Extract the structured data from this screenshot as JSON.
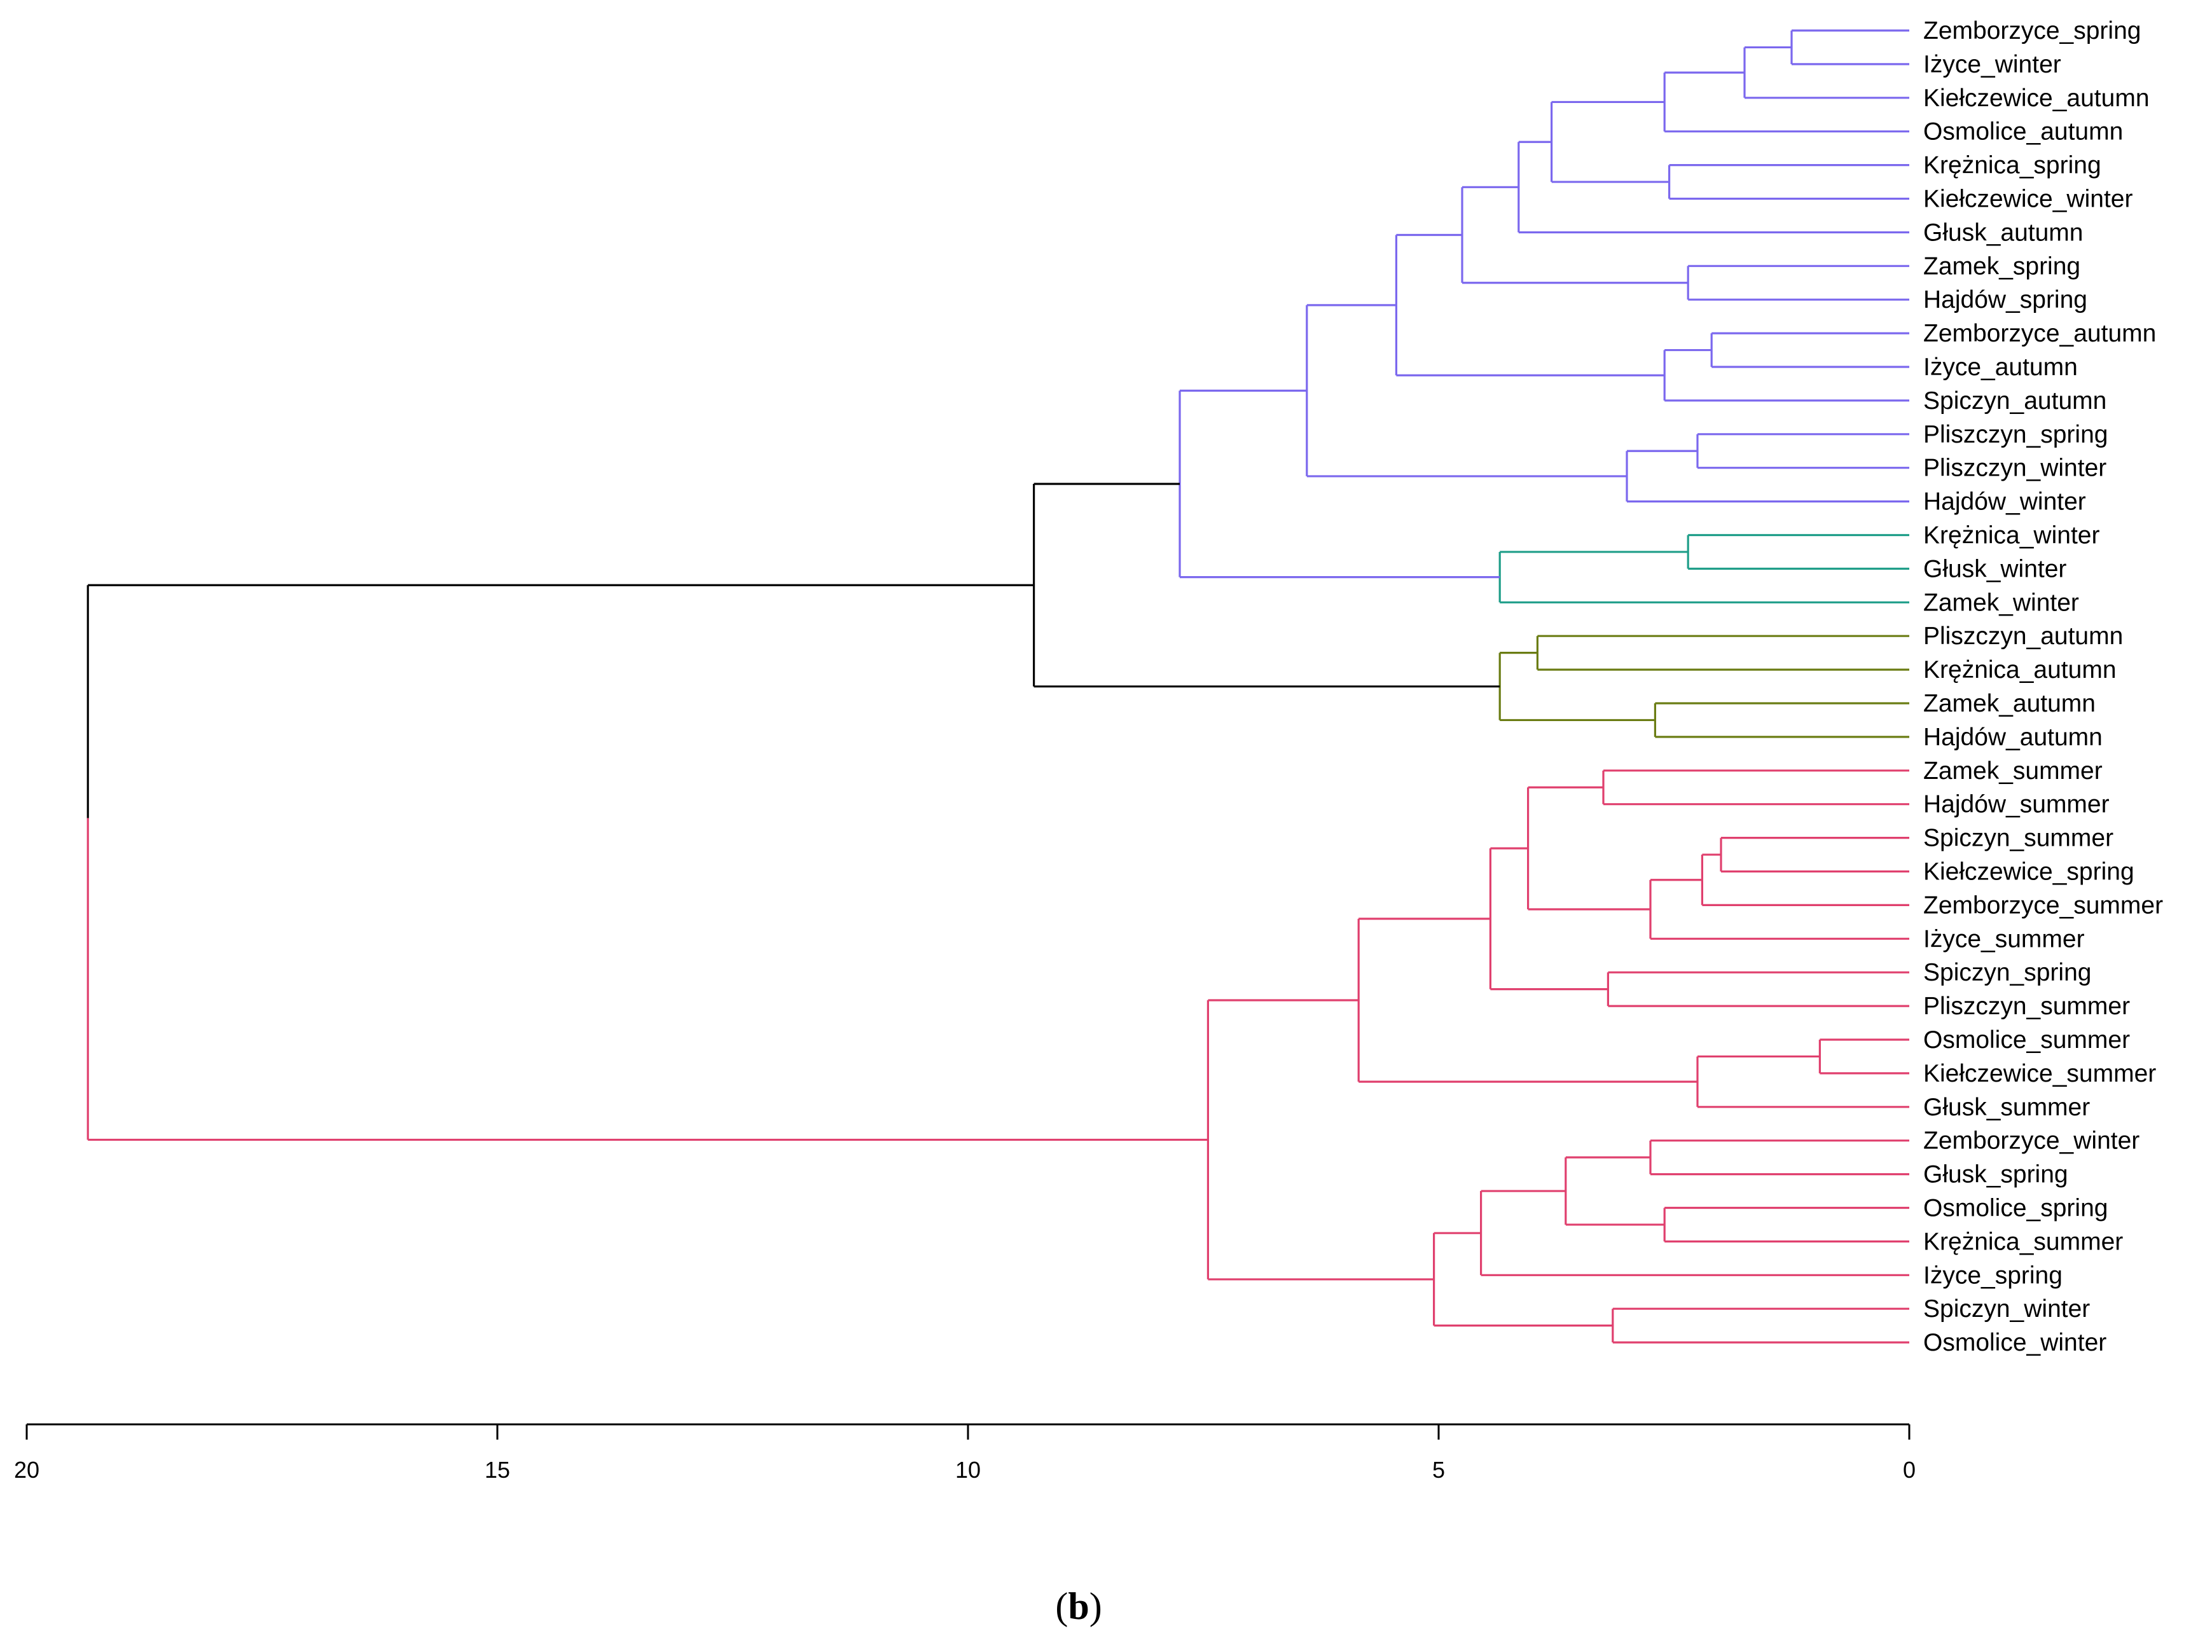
{
  "chart_data": {
    "type": "dendrogram",
    "orientation": "horizontal",
    "xlim": [
      20,
      0
    ],
    "ticks": [
      20,
      15,
      10,
      5,
      0
    ],
    "tick_labels": [
      "20",
      "15",
      "10",
      "5",
      "0"
    ],
    "panel_label": {
      "open": "(",
      "letter": "b",
      "close": ")"
    },
    "colors": {
      "purple": "#7b68ee",
      "teal": "#1f9e89",
      "olive": "#6b7d14",
      "pink": "#e0406e",
      "root": "#000000"
    },
    "leaves": [
      "Zemborzyce_spring",
      "Iżyce_winter",
      "Kiełczewice_autumn",
      "Osmolice_autumn",
      "Krężnica_spring",
      "Kiełczewice_winter",
      "Głusk_autumn",
      "Zamek_spring",
      "Hajdów_spring",
      "Zemborzyce_autumn",
      "Iżyce_autumn",
      "Spiczyn_autumn",
      "Pliszczyn_spring",
      "Pliszczyn_winter",
      "Hajdów_winter",
      "Krężnica_winter",
      "Głusk_winter",
      "Zamek_winter",
      "Pliszczyn_autumn",
      "Krężnica_autumn",
      "Zamek_autumn",
      "Hajdów_autumn",
      "Zamek_summer",
      "Hajdów_summer",
      "Spiczyn_summer",
      "Kiełczewice_spring",
      "Zemborzyce_summer",
      "Iżyce_summer",
      "Spiczyn_spring",
      "Pliszczyn_summer",
      "Osmolice_summer",
      "Kiełczewice_summer",
      "Głusk_summer",
      "Zemborzyce_winter",
      "Głusk_spring",
      "Osmolice_spring",
      "Krężnica_summer",
      "Iżyce_spring",
      "Spiczyn_winter",
      "Osmolice_winter"
    ],
    "merges": [
      {
        "id": "P1",
        "left": "L0",
        "right": "L1",
        "height": 1.25,
        "color": "purple"
      },
      {
        "id": "P2",
        "left": "P1",
        "right": "L2",
        "height": 1.75,
        "color": "purple"
      },
      {
        "id": "P3",
        "left": "P2",
        "right": "L3",
        "height": 2.6,
        "color": "purple"
      },
      {
        "id": "P4",
        "left": "L4",
        "right": "L5",
        "height": 2.55,
        "color": "purple"
      },
      {
        "id": "P5",
        "left": "P3",
        "right": "P4",
        "height": 3.8,
        "color": "purple"
      },
      {
        "id": "P6",
        "left": "P5",
        "right": "L6",
        "height": 4.15,
        "color": "purple"
      },
      {
        "id": "P7",
        "left": "L7",
        "right": "L8",
        "height": 2.35,
        "color": "purple"
      },
      {
        "id": "P8",
        "left": "P6",
        "right": "P7",
        "height": 4.75,
        "color": "purple"
      },
      {
        "id": "P9",
        "left": "L9",
        "right": "L10",
        "height": 2.1,
        "color": "purple"
      },
      {
        "id": "P10",
        "left": "P9",
        "right": "L11",
        "height": 2.6,
        "color": "purple"
      },
      {
        "id": "P11",
        "left": "P8",
        "right": "P10",
        "height": 5.45,
        "color": "purple"
      },
      {
        "id": "P12",
        "left": "L12",
        "right": "L13",
        "height": 2.25,
        "color": "purple"
      },
      {
        "id": "P13",
        "left": "P12",
        "right": "L14",
        "height": 3.0,
        "color": "purple"
      },
      {
        "id": "P14",
        "left": "P11",
        "right": "P13",
        "height": 6.4,
        "color": "purple"
      },
      {
        "id": "T1",
        "left": "L15",
        "right": "L16",
        "height": 2.35,
        "color": "teal"
      },
      {
        "id": "T2",
        "left": "T1",
        "right": "L17",
        "height": 4.35,
        "color": "teal"
      },
      {
        "id": "G1",
        "left": "P14",
        "right": "T2",
        "height": 7.75,
        "color": "purple"
      },
      {
        "id": "O1",
        "left": "L18",
        "right": "L19",
        "height": 3.95,
        "color": "olive"
      },
      {
        "id": "O2",
        "left": "L20",
        "right": "L21",
        "height": 2.7,
        "color": "olive"
      },
      {
        "id": "O3",
        "left": "O1",
        "right": "O2",
        "height": 4.35,
        "color": "olive"
      },
      {
        "id": "G2",
        "left": "G1",
        "right": "O3",
        "height": 9.3,
        "color": "root"
      },
      {
        "id": "R1",
        "left": "L22",
        "right": "L23",
        "height": 3.25,
        "color": "pink"
      },
      {
        "id": "R2",
        "left": "L24",
        "right": "L25",
        "height": 2.0,
        "color": "pink"
      },
      {
        "id": "R3",
        "left": "R2",
        "right": "L26",
        "height": 2.2,
        "color": "pink"
      },
      {
        "id": "R4",
        "left": "R3",
        "right": "L27",
        "height": 2.75,
        "color": "pink"
      },
      {
        "id": "R5",
        "left": "R1",
        "right": "R4",
        "height": 4.05,
        "color": "pink"
      },
      {
        "id": "R6",
        "left": "L28",
        "right": "L29",
        "height": 3.2,
        "color": "pink"
      },
      {
        "id": "R7",
        "left": "R5",
        "right": "R6",
        "height": 4.45,
        "color": "pink"
      },
      {
        "id": "R8",
        "left": "L30",
        "right": "L31",
        "height": 0.95,
        "color": "pink"
      },
      {
        "id": "R9",
        "left": "R8",
        "right": "L32",
        "height": 2.25,
        "color": "pink"
      },
      {
        "id": "R10",
        "left": "R7",
        "right": "R9",
        "height": 5.85,
        "color": "pink"
      },
      {
        "id": "R11",
        "left": "L33",
        "right": "L34",
        "height": 2.75,
        "color": "pink"
      },
      {
        "id": "R12",
        "left": "L35",
        "right": "L36",
        "height": 2.6,
        "color": "pink"
      },
      {
        "id": "R13",
        "left": "R11",
        "right": "R12",
        "height": 3.65,
        "color": "pink"
      },
      {
        "id": "R14",
        "left": "R13",
        "right": "L37",
        "height": 4.55,
        "color": "pink"
      },
      {
        "id": "R15",
        "left": "L38",
        "right": "L39",
        "height": 3.15,
        "color": "pink"
      },
      {
        "id": "R16",
        "left": "R14",
        "right": "R15",
        "height": 5.05,
        "color": "pink"
      },
      {
        "id": "R17",
        "left": "R10",
        "right": "R16",
        "height": 7.45,
        "color": "pink"
      },
      {
        "id": "ROOT",
        "left": "G2",
        "right": "R17",
        "height": 19.35,
        "color": "root",
        "right_color": "pink"
      }
    ]
  }
}
